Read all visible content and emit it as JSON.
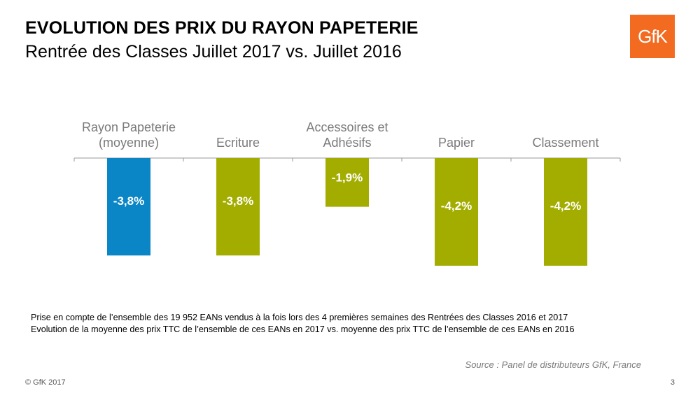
{
  "header": {
    "title": "EVOLUTION DES PRIX DU RAYON PAPETERIE",
    "subtitle": "Rentrée des Classes Juillet 2017 vs. Juillet 2016",
    "logo_text": "GfK"
  },
  "colors": {
    "highlight": "#0a86c6",
    "standard": "#a3ad00",
    "logo": "#f26b21"
  },
  "chart_data": {
    "type": "bar",
    "categories": [
      [
        "Rayon Papeterie",
        "(moyenne)"
      ],
      [
        "Ecriture"
      ],
      [
        "Accessoires et",
        "Adhésifs"
      ],
      [
        "Papier"
      ],
      [
        "Classement"
      ]
    ],
    "values": [
      -3.8,
      -3.8,
      -1.9,
      -4.2,
      -4.2
    ],
    "value_labels": [
      "-3,8%",
      "-3,8%",
      "-1,9%",
      "-4,2%",
      "-4,2%"
    ],
    "bar_colors": [
      "#0a86c6",
      "#a3ad00",
      "#a3ad00",
      "#a3ad00",
      "#a3ad00"
    ],
    "ylim": [
      -4.5,
      0
    ],
    "category_axis_position": "top",
    "grid": false,
    "legend": "none"
  },
  "notes": [
    "Prise en compte de l’ensemble des 19 952 EANs vendus à la fois lors des 4 premières semaines des Rentrées des Classes 2016 et 2017",
    "Evolution de la moyenne des prix TTC de l’ensemble de ces EANs en 2017 vs. moyenne des prix TTC de l’ensemble de ces EANs en 2016"
  ],
  "footer": {
    "source": "Source : Panel  de distributeurs GfK, France",
    "copyright": "© GfK 2017",
    "page": "3"
  }
}
